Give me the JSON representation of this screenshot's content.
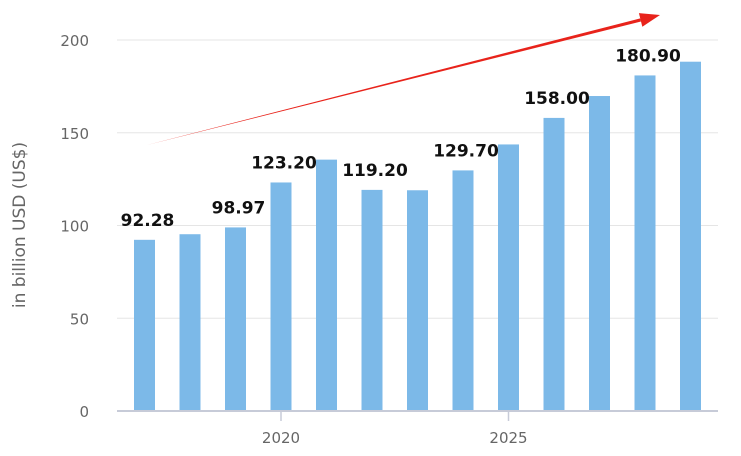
{
  "chart_data": {
    "type": "bar",
    "title": "",
    "xlabel": "",
    "ylabel": "in billion USD (US$)",
    "ylim": [
      0,
      200
    ],
    "y_ticks": [
      0,
      50,
      100,
      150,
      200
    ],
    "x": [
      2017,
      2018,
      2019,
      2020,
      2021,
      2022,
      2023,
      2024,
      2025,
      2026,
      2027,
      2028,
      2029
    ],
    "x_tick_labels": [
      "2020",
      "2025"
    ],
    "x_tick_values": [
      2020,
      2025
    ],
    "values": [
      92.28,
      95.3,
      98.97,
      123.2,
      135.5,
      119.2,
      119.0,
      129.7,
      143.7,
      158.0,
      169.8,
      180.9,
      188.3
    ],
    "data_labels": [
      "92.28",
      "",
      "98.97",
      "123.20",
      "",
      "119.20",
      "",
      "129.70",
      "",
      "158.00",
      "",
      "180.90",
      ""
    ],
    "grid": true,
    "legend": "none",
    "trend_arrow": true,
    "colors": {
      "bar": "#7cb9e8",
      "arrow": "#e8231b",
      "grid": "#e5e5e5",
      "axis": "#c7cbd8"
    }
  }
}
